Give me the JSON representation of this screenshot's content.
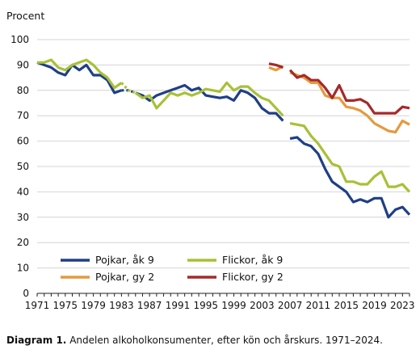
{
  "chart_data": {
    "type": "line",
    "ylabel": "Procent",
    "xlabel": "",
    "xlim": [
      1971,
      2024
    ],
    "ylim": [
      0,
      100
    ],
    "yticks": [
      0,
      10,
      20,
      30,
      40,
      50,
      60,
      70,
      80,
      90,
      100
    ],
    "xticks": [
      1971,
      1975,
      1979,
      1983,
      1987,
      1991,
      1995,
      1999,
      2003,
      2007,
      2011,
      2015,
      2019,
      2023
    ],
    "grid": "horizontal",
    "legend_position": "bottom-left",
    "series": [
      {
        "name": "Pojkar, åk 9",
        "color": "#1f3f86",
        "segments": [
          {
            "style": "solid",
            "points": [
              [
                1971,
                91
              ],
              [
                1972,
                90
              ],
              [
                1973,
                89
              ],
              [
                1974,
                87
              ],
              [
                1975,
                86
              ],
              [
                1976,
                90
              ],
              [
                1977,
                88
              ],
              [
                1978,
                90
              ],
              [
                1979,
                86
              ],
              [
                1980,
                86
              ],
              [
                1981,
                84
              ],
              [
                1982,
                79
              ],
              [
                1983,
                80
              ]
            ]
          },
          {
            "style": "dashed",
            "points": [
              [
                1983,
                80
              ],
              [
                1984,
                80
              ],
              [
                1985,
                79
              ]
            ]
          },
          {
            "style": "solid",
            "points": [
              [
                1985,
                79
              ],
              [
                1986,
                78
              ],
              [
                1987,
                76
              ],
              [
                1988,
                78
              ],
              [
                1989,
                79
              ],
              [
                1990,
                80
              ],
              [
                1991,
                81
              ],
              [
                1992,
                82
              ],
              [
                1993,
                80
              ],
              [
                1994,
                81
              ],
              [
                1995,
                78
              ],
              [
                1996,
                77.5
              ],
              [
                1997,
                77
              ],
              [
                1998,
                77.5
              ],
              [
                1999,
                76
              ],
              [
                2000,
                80
              ],
              [
                2001,
                79
              ],
              [
                2002,
                77
              ],
              [
                2003,
                73
              ],
              [
                2004,
                71
              ],
              [
                2005,
                71
              ],
              [
                2006,
                68
              ]
            ]
          },
          {
            "style": "solid",
            "points": [
              [
                2007,
                61
              ],
              [
                2008,
                61.5
              ],
              [
                2009,
                59
              ],
              [
                2010,
                58
              ],
              [
                2011,
                55
              ],
              [
                2012,
                49
              ],
              [
                2013,
                44
              ],
              [
                2014,
                42
              ],
              [
                2015,
                40
              ],
              [
                2016,
                36
              ],
              [
                2017,
                37
              ],
              [
                2018,
                36
              ],
              [
                2019,
                37.5
              ],
              [
                2020,
                37.5
              ],
              [
                2021,
                30
              ],
              [
                2022,
                33
              ],
              [
                2023,
                34
              ],
              [
                2024,
                31
              ]
            ]
          }
        ]
      },
      {
        "name": "Flickor, åk 9",
        "color": "#a7c136",
        "segments": [
          {
            "style": "solid",
            "points": [
              [
                1971,
                91
              ],
              [
                1972,
                91
              ],
              [
                1973,
                92
              ],
              [
                1974,
                89
              ],
              [
                1975,
                88
              ],
              [
                1976,
                90
              ],
              [
                1977,
                91
              ],
              [
                1978,
                92
              ],
              [
                1979,
                90
              ],
              [
                1980,
                87
              ],
              [
                1981,
                85
              ],
              [
                1982,
                81
              ],
              [
                1983,
                83
              ]
            ]
          },
          {
            "style": "dashed",
            "points": [
              [
                1983,
                83
              ],
              [
                1984,
                80
              ],
              [
                1985,
                79
              ]
            ]
          },
          {
            "style": "solid",
            "points": [
              [
                1985,
                79
              ],
              [
                1986,
                77
              ],
              [
                1987,
                78
              ],
              [
                1988,
                73
              ],
              [
                1989,
                76
              ],
              [
                1990,
                79
              ],
              [
                1991,
                78
              ],
              [
                1992,
                79
              ],
              [
                1993,
                78
              ],
              [
                1994,
                79
              ],
              [
                1995,
                80.5
              ],
              [
                1996,
                80
              ],
              [
                1997,
                79.5
              ],
              [
                1998,
                83
              ],
              [
                1999,
                80
              ],
              [
                2000,
                81.5
              ],
              [
                2001,
                81.5
              ],
              [
                2002,
                79
              ],
              [
                2003,
                77
              ],
              [
                2004,
                76
              ],
              [
                2005,
                73
              ],
              [
                2006,
                70
              ]
            ]
          },
          {
            "style": "solid",
            "points": [
              [
                2007,
                67
              ],
              [
                2008,
                66.5
              ],
              [
                2009,
                66
              ],
              [
                2010,
                62
              ],
              [
                2011,
                59
              ],
              [
                2012,
                55
              ],
              [
                2013,
                51
              ],
              [
                2014,
                50
              ],
              [
                2015,
                44
              ],
              [
                2016,
                44
              ],
              [
                2017,
                43
              ],
              [
                2018,
                43
              ],
              [
                2019,
                46
              ],
              [
                2020,
                48
              ],
              [
                2021,
                42
              ],
              [
                2022,
                42
              ],
              [
                2023,
                43
              ],
              [
                2024,
                40
              ]
            ]
          }
        ]
      },
      {
        "name": "Pojkar, gy 2",
        "color": "#e49a3e",
        "segments": [
          {
            "style": "solid",
            "points": [
              [
                2004,
                89
              ],
              [
                2005,
                88
              ],
              [
                2006,
                89.5
              ]
            ]
          },
          {
            "style": "solid",
            "points": [
              [
                2007,
                87
              ],
              [
                2008,
                86
              ],
              [
                2009,
                85
              ],
              [
                2010,
                83
              ],
              [
                2011,
                83
              ],
              [
                2012,
                78
              ],
              [
                2013,
                77
              ],
              [
                2014,
                77
              ],
              [
                2015,
                73.5
              ],
              [
                2016,
                73
              ],
              [
                2017,
                72
              ],
              [
                2018,
                70
              ],
              [
                2019,
                67
              ],
              [
                2020,
                65.5
              ],
              [
                2021,
                64
              ],
              [
                2022,
                63.5
              ],
              [
                2023,
                68
              ],
              [
                2024,
                66.5
              ]
            ]
          }
        ]
      },
      {
        "name": "Flickor, gy 2",
        "color": "#a52a2a",
        "segments": [
          {
            "style": "solid",
            "points": [
              [
                2004,
                90.5
              ],
              [
                2005,
                90
              ],
              [
                2006,
                89
              ]
            ]
          },
          {
            "style": "solid",
            "points": [
              [
                2007,
                88
              ],
              [
                2008,
                85
              ],
              [
                2009,
                86
              ],
              [
                2010,
                84
              ],
              [
                2011,
                84
              ],
              [
                2012,
                81
              ],
              [
                2013,
                77
              ],
              [
                2014,
                82
              ],
              [
                2015,
                76
              ],
              [
                2016,
                76
              ],
              [
                2017,
                76.5
              ],
              [
                2018,
                75
              ],
              [
                2019,
                71
              ],
              [
                2020,
                71
              ],
              [
                2021,
                71
              ],
              [
                2022,
                71
              ],
              [
                2023,
                73.5
              ],
              [
                2024,
                73
              ]
            ]
          }
        ]
      }
    ]
  },
  "caption": {
    "label": "Diagram 1.",
    "text": " Andelen alkoholkonsumenter, efter kön och årskurs. 1971–2024."
  }
}
